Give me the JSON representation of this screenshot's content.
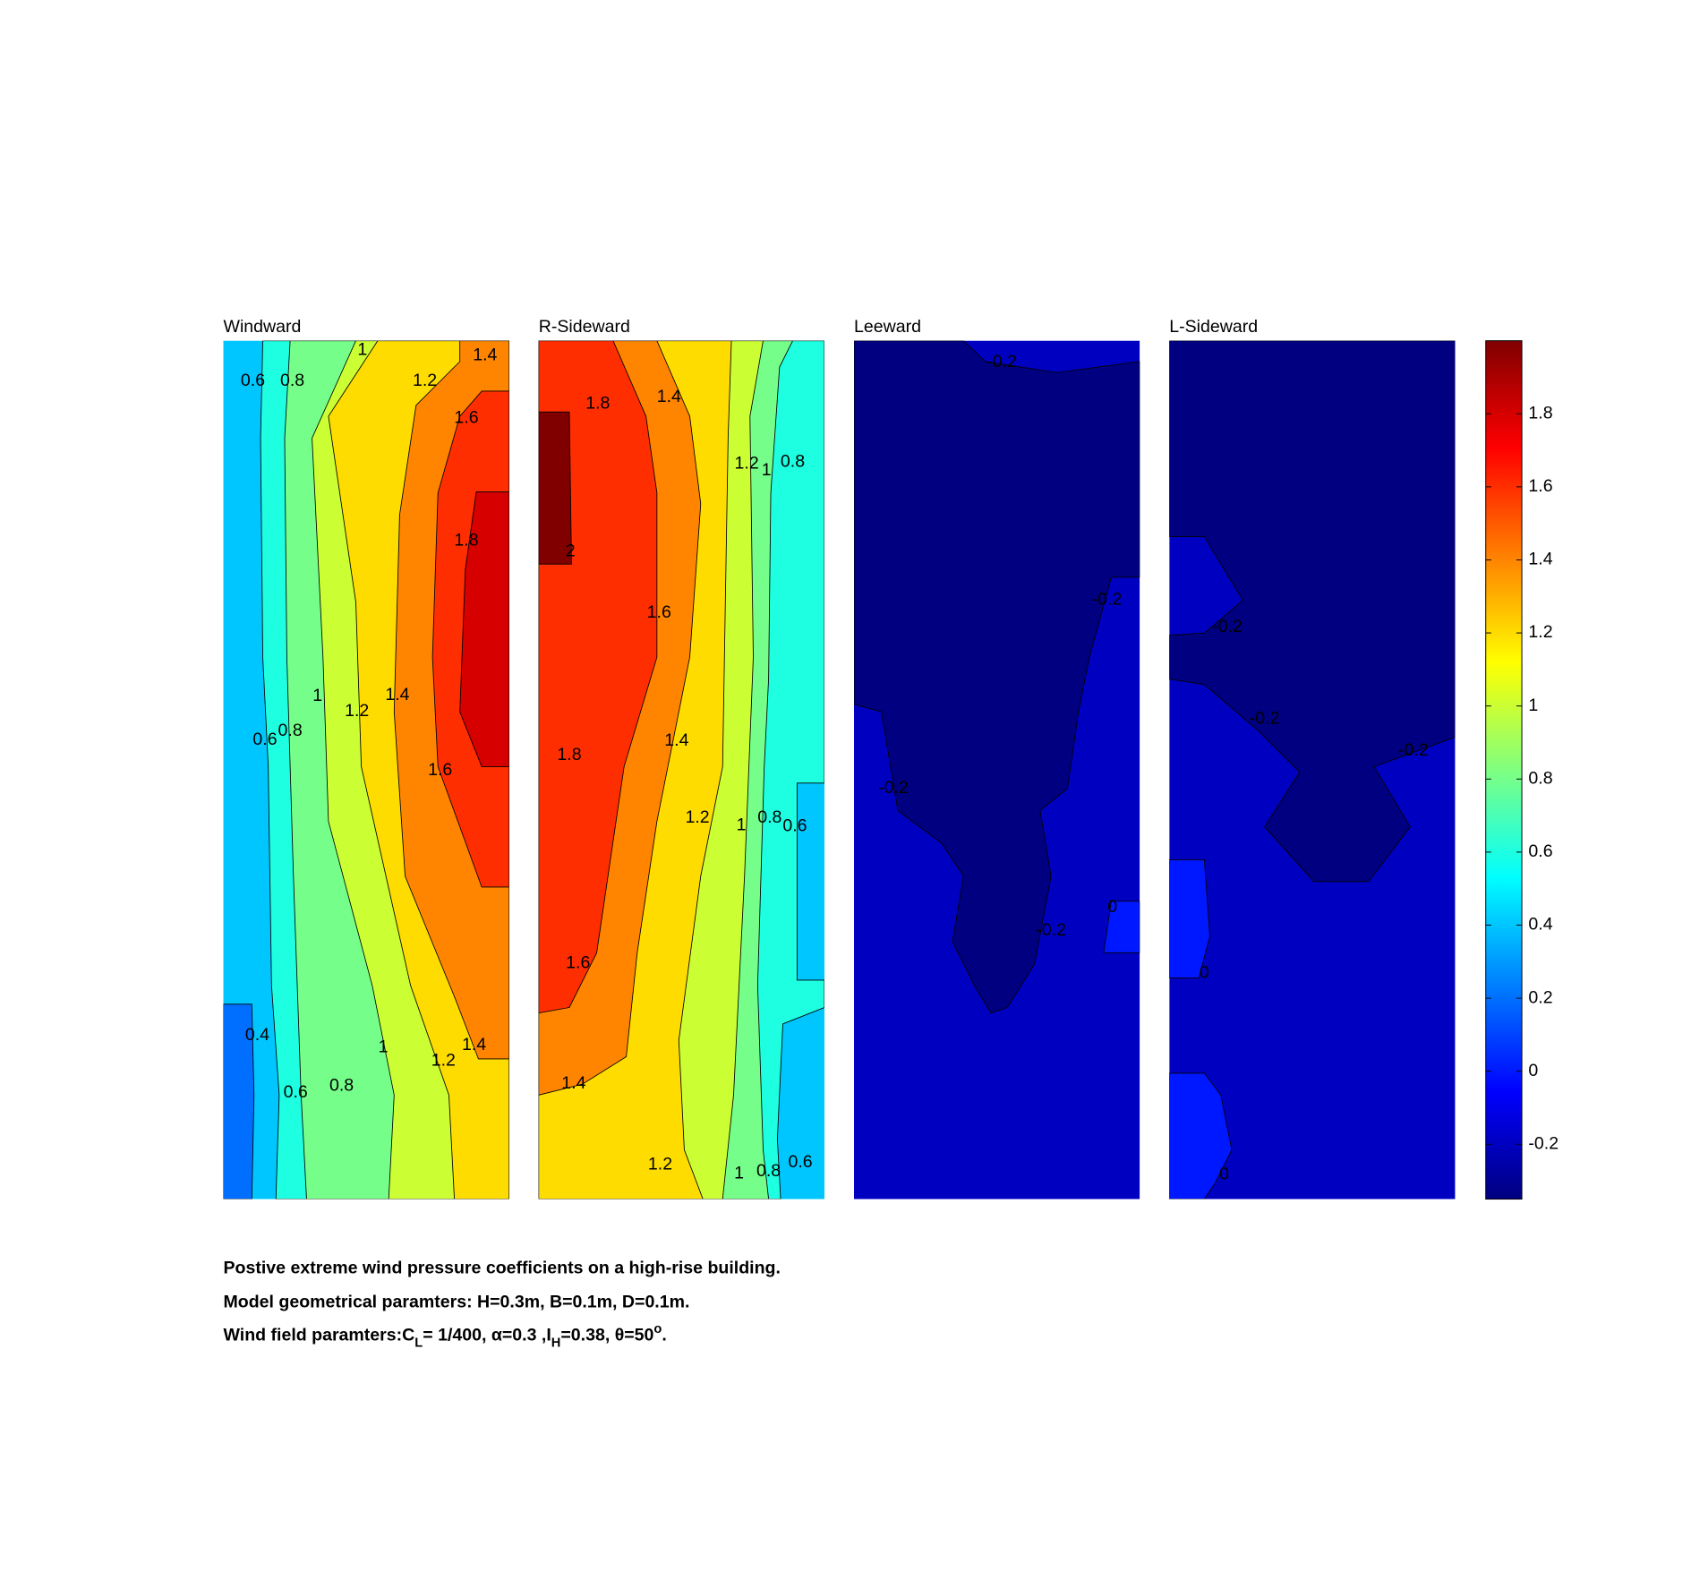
{
  "chart_data": [
    {
      "type": "contour",
      "title": "Windward",
      "levels": [
        0.4,
        0.2,
        0.6,
        0.8,
        1,
        1.2,
        1.4,
        1.6,
        1.8
      ],
      "contour_labels": [
        0.6,
        0.8,
        1,
        1.2,
        1.4,
        1.6,
        1.8,
        1,
        1.2,
        1.4,
        0.6,
        0.8,
        1.6,
        0.4,
        1,
        1.2,
        1.4,
        0.6,
        0.8
      ]
    },
    {
      "type": "contour",
      "title": "R-Sideward",
      "levels": [
        0.4,
        0.6,
        0.8,
        1,
        1.2,
        1.4,
        1.6,
        2
      ],
      "contour_labels": [
        1.8,
        1.4,
        1.2,
        1,
        0.8,
        2,
        1.6,
        1.8,
        1.4,
        1.2,
        1,
        0.8,
        0.6,
        1.6,
        1.4,
        1.2,
        1,
        0.8,
        0.6
      ]
    },
    {
      "type": "contour",
      "title": "Leeward",
      "levels": [
        -0.2,
        -0.4,
        0
      ],
      "contour_labels": [
        -0.2,
        -0.2,
        -0.2,
        -0.2,
        0
      ]
    },
    {
      "type": "contour",
      "title": "L-Sideward",
      "levels": [
        -0.2,
        -0.4,
        0,
        0
      ],
      "contour_labels": [
        -0.2,
        -0.2,
        -0.2,
        0,
        0
      ]
    }
  ],
  "colorbar": {
    "clim": [
      -0.35,
      2.0
    ],
    "ticks": [
      -0.2,
      0,
      0.2,
      0.4,
      0.6,
      0.8,
      1,
      1.2,
      1.4,
      1.6,
      1.8
    ],
    "colormap": "jet"
  },
  "caption": {
    "line1": "Postive extreme  wind pressure coefficients on a high-rise building.",
    "line2": "Model geometrical paramters: H=0.3m, B=0.1m, D=0.1m.",
    "line3": [
      {
        "text": "Wind field paramters:C",
        "style": "normal"
      },
      {
        "text": "L",
        "style": "sub"
      },
      {
        "text": "= 1/400, α=0.3 ,I",
        "style": "normal"
      },
      {
        "text": "H",
        "style": "sub"
      },
      {
        "text": "=0.38, θ=50",
        "style": "normal"
      },
      {
        "text": "o",
        "style": "super"
      },
      {
        "text": ".",
        "style": "normal"
      }
    ]
  }
}
